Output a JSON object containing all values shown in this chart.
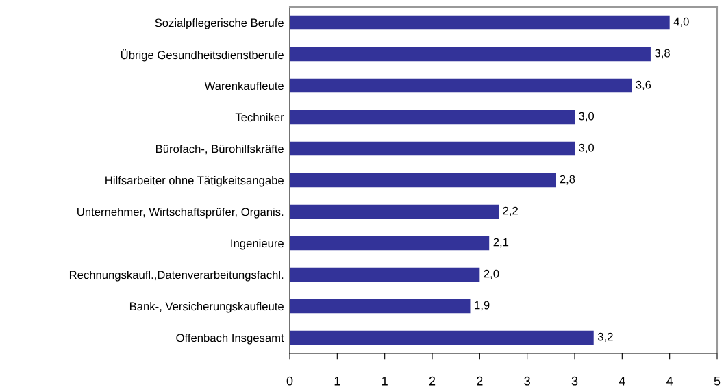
{
  "chart_data": {
    "type": "bar",
    "orientation": "horizontal",
    "categories": [
      "Sozialpflegerische Berufe",
      "Übrige Gesundheitsdienstberufe",
      "Warenkaufleute",
      "Techniker",
      "Bürofach-, Bürohilfskräfte",
      "Hilfsarbeiter ohne Tätigkeitsangabe",
      "Unternehmer, Wirtschaftsprüfer, Organis.",
      "Ingenieure",
      "Rechnungskaufl.,Datenverarbeitungsfachl.",
      "Bank-, Versicherungskaufleute",
      "Offenbach Insgesamt"
    ],
    "values": [
      4.0,
      3.8,
      3.6,
      3.0,
      3.0,
      2.8,
      2.2,
      2.1,
      2.0,
      1.9,
      3.2
    ],
    "value_labels": [
      "4,0",
      "3,8",
      "3,6",
      "3,0",
      "3,0",
      "2,8",
      "2,2",
      "2,1",
      "2,0",
      "1,9",
      "3,2"
    ],
    "color": "#333399",
    "xlim": [
      0,
      4.5
    ],
    "xticks": [
      0,
      {
        "value": 0.5,
        "label": "1"
      },
      1,
      {
        "value": 1.5,
        "label": "2"
      },
      2,
      {
        "value": 2.5,
        "label": "3"
      },
      3,
      {
        "value": 3.5,
        "label": "4"
      },
      4,
      {
        "value": 4.5,
        "label": "5"
      }
    ],
    "grid": false,
    "legend": false
  }
}
